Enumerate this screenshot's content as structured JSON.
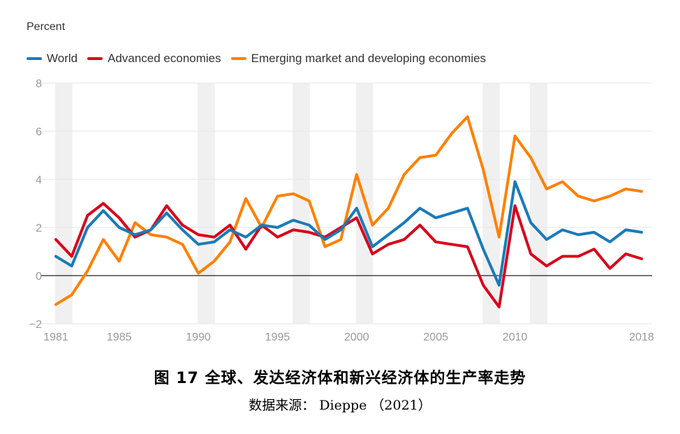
{
  "chart_data": {
    "type": "line",
    "title": "图 17 全球、发达经济体和新兴经济体的生产率走势",
    "source": "数据来源： Dieppe （2021）",
    "ylabel": "Percent",
    "xlabel": "",
    "ylim": [
      -2,
      8
    ],
    "yticks": [
      -2,
      0,
      2,
      4,
      6,
      8
    ],
    "xlim": [
      1981,
      2018
    ],
    "xticks": [
      1981,
      1985,
      1990,
      1995,
      2000,
      2005,
      2010,
      2018
    ],
    "shaded_periods": [
      [
        1981,
        1982
      ],
      [
        1990,
        1991
      ],
      [
        1996,
        1997
      ],
      [
        2000,
        2001
      ],
      [
        2008,
        2009
      ],
      [
        2011,
        2012
      ]
    ],
    "x": [
      1981,
      1982,
      1983,
      1984,
      1985,
      1986,
      1987,
      1988,
      1989,
      1990,
      1991,
      1992,
      1993,
      1994,
      1995,
      1996,
      1997,
      1998,
      1999,
      2000,
      2001,
      2002,
      2003,
      2004,
      2005,
      2006,
      2007,
      2008,
      2009,
      2010,
      2011,
      2012,
      2013,
      2014,
      2015,
      2016,
      2017,
      2018
    ],
    "series": [
      {
        "name": "World",
        "color": "#1a7ab8",
        "values": [
          0.8,
          0.4,
          2.0,
          2.7,
          2.0,
          1.7,
          1.9,
          2.6,
          1.9,
          1.3,
          1.4,
          1.9,
          1.6,
          2.1,
          2.0,
          2.3,
          2.1,
          1.5,
          1.9,
          2.8,
          1.2,
          1.7,
          2.2,
          2.8,
          2.4,
          2.6,
          2.8,
          1.1,
          -0.4,
          3.9,
          2.2,
          1.5,
          1.9,
          1.7,
          1.8,
          1.4,
          1.9,
          1.8
        ]
      },
      {
        "name": "Advanced economies",
        "color": "#d9001b",
        "values": [
          1.5,
          0.8,
          2.5,
          3.0,
          2.4,
          1.6,
          1.9,
          2.9,
          2.1,
          1.7,
          1.6,
          2.1,
          1.1,
          2.1,
          1.6,
          1.9,
          1.8,
          1.6,
          2.0,
          2.4,
          0.9,
          1.3,
          1.5,
          2.1,
          1.4,
          1.3,
          1.2,
          -0.4,
          -1.3,
          2.9,
          0.9,
          0.4,
          0.8,
          0.8,
          1.1,
          0.3,
          0.9,
          0.7
        ]
      },
      {
        "name": "Emerging market and developing economies",
        "color": "#ff8000",
        "values": [
          -1.2,
          -0.8,
          0.2,
          1.5,
          0.6,
          2.2,
          1.7,
          1.6,
          1.3,
          0.1,
          0.6,
          1.4,
          3.2,
          2.0,
          3.3,
          3.4,
          3.1,
          1.2,
          1.5,
          4.2,
          2.1,
          2.8,
          4.2,
          4.9,
          5.0,
          5.9,
          6.6,
          4.4,
          1.6,
          5.8,
          4.9,
          3.6,
          3.9,
          3.3,
          3.1,
          3.3,
          3.6,
          3.5
        ]
      }
    ]
  }
}
